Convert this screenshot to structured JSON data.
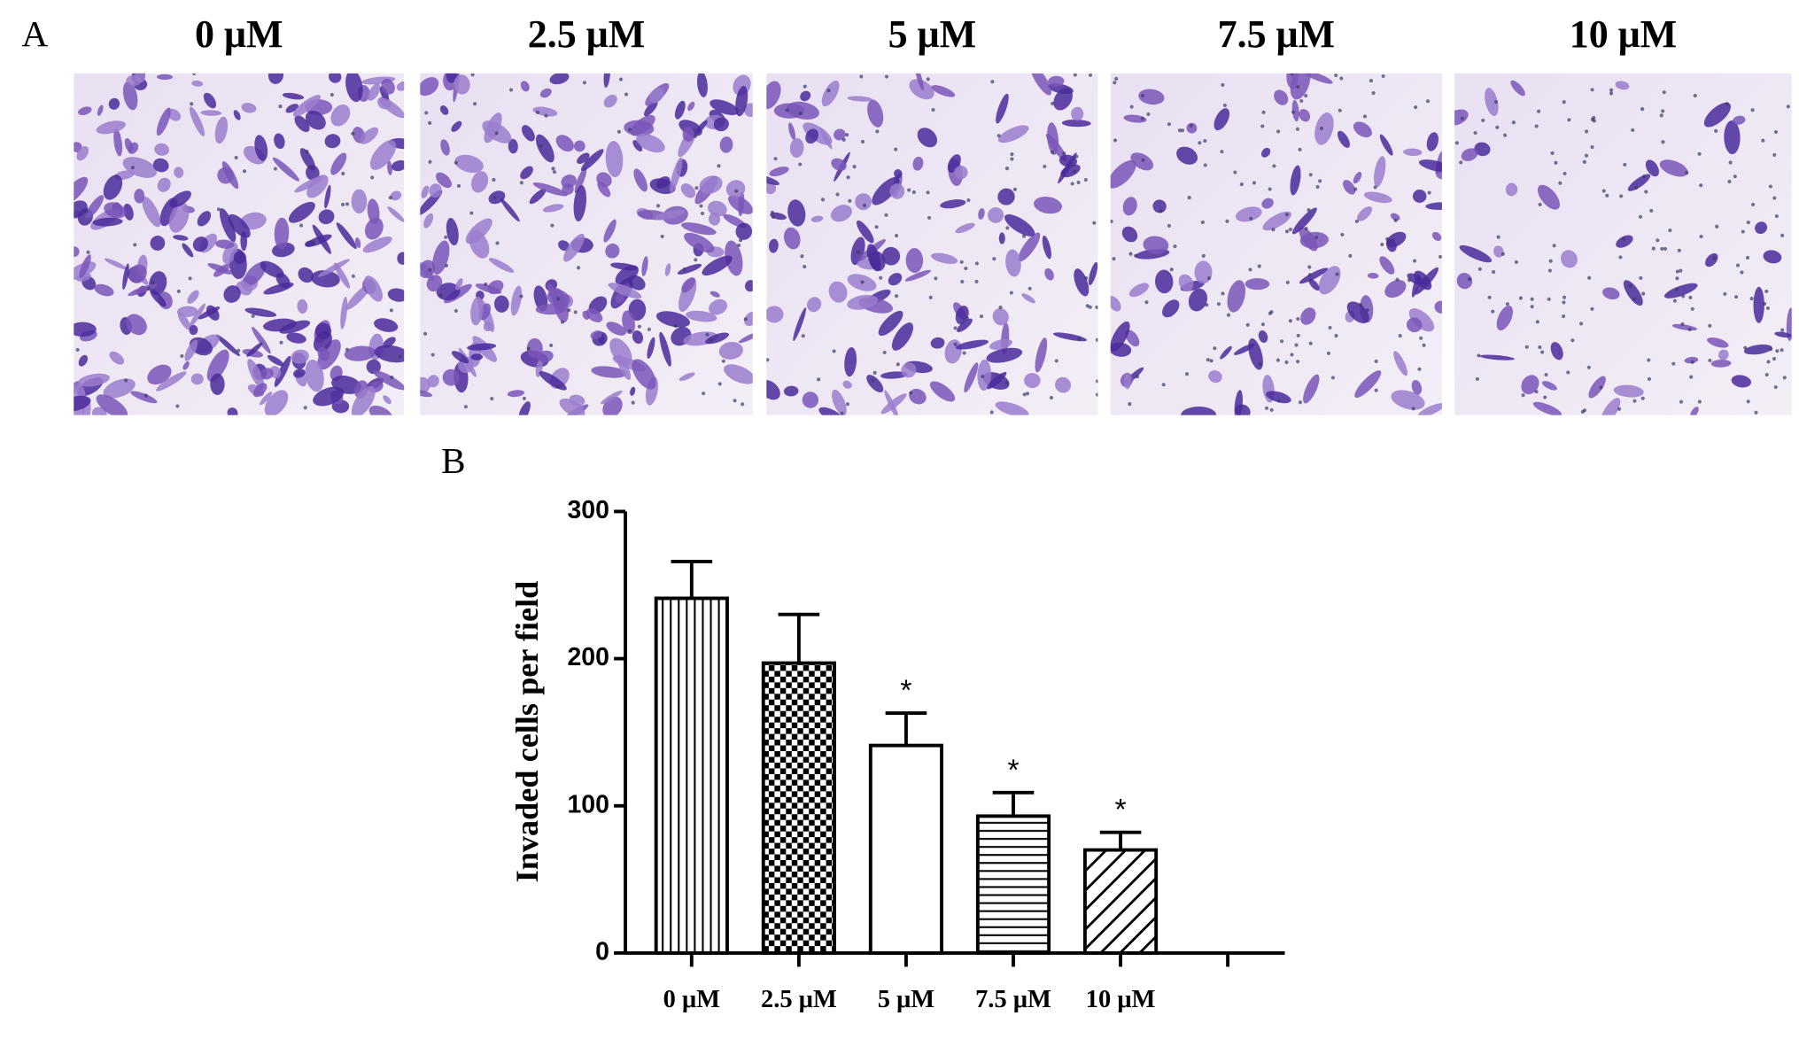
{
  "panel_a": {
    "label": "A",
    "images": [
      "0 μM",
      "2.5 μM",
      "5 μM",
      "7.5 μM",
      "10 μM"
    ]
  },
  "chart_data": {
    "type": "bar",
    "panel_label": "B",
    "y_label": "Invaded cells per field",
    "categories": [
      "0 μM",
      "2.5 μM",
      "5 μM",
      "7.5 μM",
      "10 μM",
      null
    ],
    "values": [
      241,
      197,
      141,
      93,
      70,
      null
    ],
    "errors": [
      25,
      33,
      22,
      16,
      12,
      null
    ],
    "patterns": [
      "vertical",
      "checker",
      "none",
      "horizontal",
      "diagonal",
      null
    ],
    "annotations": [
      {
        "x": "5 μM",
        "text": "*"
      },
      {
        "x": "7.5 μM",
        "text": "*"
      },
      {
        "x": "10 μM",
        "text": "*"
      }
    ],
    "color": "#000000",
    "ylim": [
      0,
      300
    ],
    "yticks": [
      0,
      100,
      200,
      300
    ]
  }
}
